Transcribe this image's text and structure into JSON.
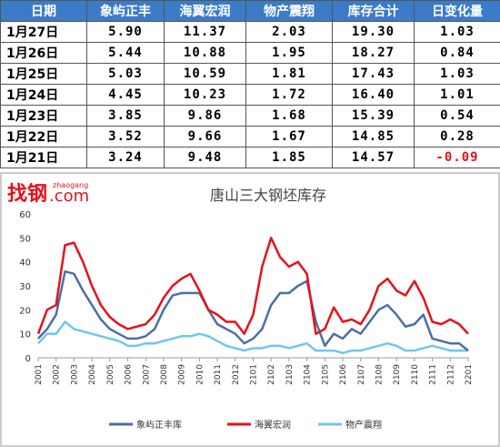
{
  "table": {
    "headers": [
      "日期",
      "象屿正丰",
      "海翼宏润",
      "物产震翔",
      "库存合计",
      "日变化量"
    ],
    "rows": [
      [
        "1月27日",
        "5.90",
        "11.37",
        "2.03",
        "19.30",
        "1.03"
      ],
      [
        "1月26日",
        "5.44",
        "10.88",
        "1.95",
        "18.27",
        "0.84"
      ],
      [
        "1月25日",
        "5.03",
        "10.59",
        "1.81",
        "17.43",
        "1.03"
      ],
      [
        "1月24日",
        "4.45",
        "10.23",
        "1.72",
        "16.40",
        "1.01"
      ],
      [
        "1月23日",
        "3.85",
        "9.86",
        "1.68",
        "15.39",
        "0.54"
      ],
      [
        "1月22日",
        "3.52",
        "9.66",
        "1.67",
        "14.85",
        "0.28"
      ],
      [
        "1月21日",
        "3.24",
        "9.48",
        "1.85",
        "14.57",
        "-0.09"
      ]
    ]
  },
  "logo": {
    "brand": "找钢",
    "pinyin": "zhaogang",
    "domain": ".com"
  },
  "chart_data": {
    "type": "line",
    "title": "唐山三大钢坯库存",
    "categories": [
      "2001",
      null,
      "2002",
      null,
      "2003",
      null,
      "2004",
      null,
      "2005",
      null,
      "2006",
      null,
      "2007",
      null,
      "2008",
      null,
      "2009",
      null,
      "2010",
      null,
      "2011",
      null,
      "2012",
      null,
      "2101",
      null,
      "2102",
      null,
      "2103",
      null,
      "2104",
      null,
      "2105",
      null,
      "2106",
      null,
      "2107",
      null,
      "2108",
      null,
      "2109",
      null,
      "2110",
      null,
      "2111",
      null,
      "2112",
      null,
      "2201"
    ],
    "ylim": [
      0,
      60
    ],
    "yticks": [
      0,
      10,
      20,
      30,
      40,
      50,
      60
    ],
    "series": [
      {
        "name": "象屿正丰库",
        "color": "#4a6fa5",
        "values": [
          8,
          12,
          18,
          36,
          35,
          28,
          22,
          16,
          12,
          10,
          8,
          8,
          9,
          12,
          20,
          26,
          27,
          27,
          27,
          20,
          14,
          12,
          10,
          6,
          8,
          12,
          22,
          27,
          27,
          30,
          32,
          15,
          5,
          10,
          8,
          12,
          10,
          15,
          20,
          22,
          18,
          13,
          14,
          18,
          8,
          7,
          6,
          6,
          3
        ]
      },
      {
        "name": "海翼宏润",
        "color": "#e8101a",
        "values": [
          10,
          20,
          22,
          47,
          48,
          40,
          30,
          22,
          17,
          14,
          12,
          13,
          14,
          18,
          25,
          30,
          33,
          35,
          28,
          20,
          18,
          15,
          15,
          10,
          18,
          38,
          50,
          42,
          38,
          40,
          35,
          10,
          12,
          21,
          15,
          16,
          14,
          20,
          30,
          33,
          28,
          26,
          32,
          25,
          15,
          14,
          16,
          14,
          10
        ]
      },
      {
        "name": "物产震翔",
        "color": "#6ec6ee",
        "values": [
          6,
          10,
          10,
          15,
          12,
          11,
          10,
          9,
          8,
          7,
          5,
          5,
          6,
          6,
          7,
          8,
          9,
          9,
          10,
          9,
          7,
          5,
          4,
          3,
          4,
          4,
          5,
          5,
          4,
          5,
          6,
          3,
          3,
          3,
          2,
          3,
          3,
          4,
          5,
          6,
          5,
          3,
          3,
          4,
          5,
          4,
          3,
          3,
          3
        ]
      }
    ]
  }
}
